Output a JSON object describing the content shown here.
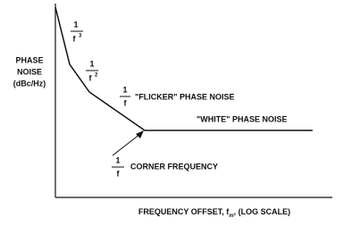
{
  "y_axis_label": [
    "PHASE",
    "NOISE",
    "(dBc/Hz)"
  ],
  "x_axis_label": {
    "main": "FREQUENCY OFFSET, f",
    "subscript": "m",
    "rest": ", (LOG SCALE)"
  },
  "regions": [
    {
      "numerator": "1",
      "denominator": "f",
      "exponent": "3"
    },
    {
      "numerator": "1",
      "denominator": "f",
      "exponent": "2"
    },
    {
      "numerator": "1",
      "denominator": "f",
      "label": "\"FLICKER\" PHASE NOISE"
    },
    {
      "label": "\"WHITE\" PHASE NOISE"
    }
  ],
  "corner": {
    "numerator": "1",
    "denominator": "f",
    "label": "CORNER FREQUENCY"
  }
}
